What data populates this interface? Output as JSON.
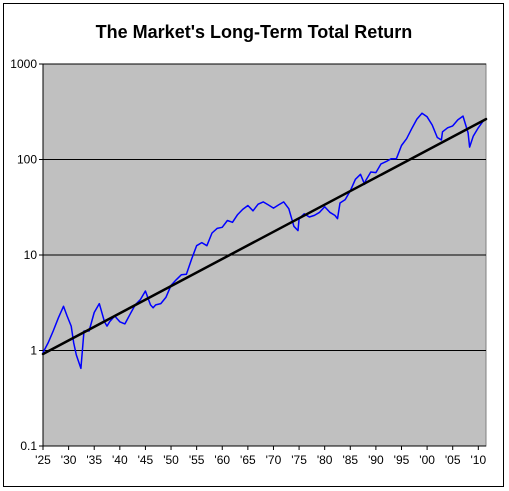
{
  "chart_data": {
    "type": "line",
    "title": "The Market's Long-Term Total Return",
    "xlabel": "",
    "ylabel": "",
    "y_scale": "log",
    "ylim": [
      0.1,
      1000
    ],
    "xlim": [
      1925,
      2011.5
    ],
    "y_ticks": [
      {
        "value": 0.1,
        "label": "0.1"
      },
      {
        "value": 1,
        "label": "1"
      },
      {
        "value": 10,
        "label": "10"
      },
      {
        "value": 100,
        "label": "100"
      },
      {
        "value": 1000,
        "label": "1000"
      }
    ],
    "x_ticks": [
      {
        "value": 1925,
        "label": "'25"
      },
      {
        "value": 1930,
        "label": "'30"
      },
      {
        "value": 1935,
        "label": "'35"
      },
      {
        "value": 1940,
        "label": "'40"
      },
      {
        "value": 1945,
        "label": "'45"
      },
      {
        "value": 1950,
        "label": "'50"
      },
      {
        "value": 1955,
        "label": "'55"
      },
      {
        "value": 1960,
        "label": "'60"
      },
      {
        "value": 1965,
        "label": "'65"
      },
      {
        "value": 1970,
        "label": "'70"
      },
      {
        "value": 1975,
        "label": "'75"
      },
      {
        "value": 1980,
        "label": "'80"
      },
      {
        "value": 1985,
        "label": "'85"
      },
      {
        "value": 1990,
        "label": "'90"
      },
      {
        "value": 1995,
        "label": "'95"
      },
      {
        "value": 2000,
        "label": "'00"
      },
      {
        "value": 2005,
        "label": "'05"
      },
      {
        "value": 2010,
        "label": "'10"
      }
    ],
    "grid": "horizontal",
    "plot_background": "#c0c0c0",
    "series": [
      {
        "color": "#0000ff",
        "x": [
          1925,
          1926,
          1927,
          1928,
          1929,
          1929.7,
          1930.5,
          1931,
          1931.5,
          1932.4,
          1933,
          1934,
          1935,
          1936,
          1937,
          1937.5,
          1938,
          1939,
          1940,
          1941,
          1942,
          1943,
          1944,
          1945,
          1946,
          1946.5,
          1947,
          1948,
          1949,
          1950,
          1951,
          1952,
          1953,
          1954,
          1955,
          1956,
          1957,
          1958,
          1959,
          1960,
          1961,
          1962,
          1963,
          1964,
          1965,
          1966,
          1967,
          1968,
          1969,
          1970,
          1971,
          1972,
          1973,
          1974,
          1974.8,
          1975,
          1976,
          1977,
          1978,
          1979,
          1980,
          1981,
          1982,
          1982.5,
          1983,
          1984,
          1985,
          1986,
          1987,
          1987.8,
          1988,
          1989,
          1990,
          1991,
          1992,
          1993,
          1994,
          1995,
          1996,
          1997,
          1998,
          1999,
          2000,
          2001,
          2002,
          2002.8,
          2003,
          2004,
          2005,
          2006,
          2007,
          2008,
          2008.3,
          2009,
          2010,
          2011
        ],
        "y": [
          0.95,
          1.2,
          1.6,
          2.2,
          2.9,
          2.3,
          1.8,
          1.2,
          0.9,
          0.65,
          1.6,
          1.6,
          2.5,
          3.1,
          2.0,
          1.8,
          2.0,
          2.3,
          2.0,
          1.9,
          2.4,
          3.0,
          3.4,
          4.2,
          3.0,
          2.8,
          3.0,
          3.1,
          3.6,
          4.8,
          5.5,
          6.2,
          6.3,
          9.0,
          12.5,
          13.5,
          12.5,
          17.0,
          19.0,
          19.5,
          23.0,
          22.0,
          26.5,
          30.0,
          33.0,
          29.0,
          34.0,
          36.0,
          33.5,
          31.0,
          33.5,
          36.0,
          30.5,
          20.0,
          18.0,
          24.0,
          27.0,
          25.0,
          26.0,
          28.0,
          32.0,
          28.0,
          26.0,
          24.0,
          35.0,
          38.0,
          47.0,
          62.0,
          70.0,
          55.0,
          60.0,
          74.0,
          73.0,
          90.0,
          95.0,
          102.0,
          102.0,
          140.0,
          165.0,
          210.0,
          265.0,
          305.0,
          280.0,
          230.0,
          170.0,
          160.0,
          195.0,
          215.0,
          225.0,
          260.0,
          285.0,
          190.0,
          135.0,
          175.0,
          215.0,
          255.0
        ]
      },
      {
        "color": "#000000",
        "x": [
          1925,
          2011.5
        ],
        "y": [
          0.92,
          265
        ]
      }
    ]
  }
}
